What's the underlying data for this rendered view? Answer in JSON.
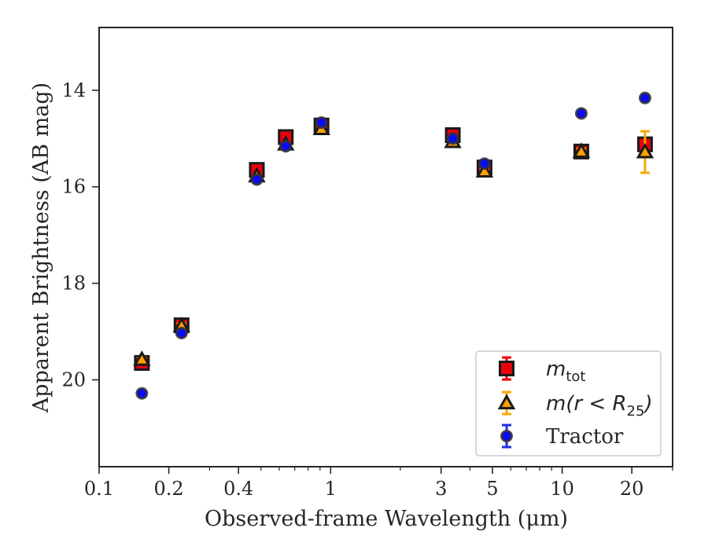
{
  "chart_data": {
    "type": "scatter",
    "xlabel": "Observed-frame Wavelength (μm)",
    "ylabel": "Apparent Brightness (AB mag)",
    "xscale": "log",
    "xlim": [
      0.1,
      30
    ],
    "ylim": [
      21.8,
      12.7
    ],
    "y_inverted": true,
    "xticks": [
      0.1,
      0.2,
      0.4,
      1,
      3,
      5,
      10,
      20
    ],
    "xtick_labels": [
      "0.1",
      "0.2",
      "0.4",
      "1",
      "3",
      "5",
      "10",
      "20"
    ],
    "yticks": [
      14,
      16,
      18,
      20
    ],
    "ytick_labels": [
      "14",
      "16",
      "18",
      "20"
    ],
    "grid": false,
    "legend_placement": "lower right",
    "series": [
      {
        "name": "m_tot",
        "marker": "square",
        "color": "#e8000b",
        "edge_color": "#1a1a1a",
        "errorbar_color": "#e8000b",
        "x": [
          0.153,
          0.227,
          0.48,
          0.64,
          0.913,
          3.37,
          4.62,
          12.1,
          22.8
        ],
        "y": [
          19.65,
          18.87,
          15.65,
          14.97,
          14.73,
          14.93,
          15.6,
          15.27,
          15.12
        ],
        "yerr": [
          0.03,
          0.06,
          0.02,
          0.02,
          0.02,
          0.02,
          0.03,
          0.05,
          0.1
        ]
      },
      {
        "name": "m(r < R_25)",
        "marker": "triangle",
        "color": "#ff9f00",
        "edge_color": "#1a1a1a",
        "errorbar_color": "#f5a800",
        "x": [
          0.153,
          0.227,
          0.48,
          0.64,
          0.913,
          3.37,
          4.62,
          12.1,
          22.8
        ],
        "y": [
          19.58,
          18.88,
          15.78,
          15.12,
          14.8,
          15.07,
          15.68,
          15.27,
          15.28
        ],
        "yerr": [
          0.03,
          0.05,
          0.02,
          0.02,
          0.02,
          0.02,
          0.03,
          0.06,
          0.43
        ]
      },
      {
        "name": "Tractor",
        "marker": "circle",
        "color": "#0a0aff",
        "edge_color": "#333333",
        "errorbar_color": "#1f2fe0",
        "x": [
          0.153,
          0.227,
          0.48,
          0.64,
          0.913,
          3.37,
          4.62,
          12.1,
          22.8
        ],
        "y": [
          20.28,
          19.03,
          15.85,
          15.16,
          14.67,
          15.0,
          15.52,
          14.48,
          14.16
        ],
        "yerr": [
          0.03,
          0.04,
          0.02,
          0.02,
          0.02,
          0.02,
          0.03,
          0.03,
          0.04
        ]
      }
    ]
  },
  "legend": {
    "items": [
      {
        "main": "m",
        "sub": "tot",
        "tail": ""
      },
      {
        "main": "m(r < R",
        "sub": "25",
        "tail": ")"
      },
      {
        "main": "Tractor",
        "sub": "",
        "tail": ""
      }
    ]
  }
}
